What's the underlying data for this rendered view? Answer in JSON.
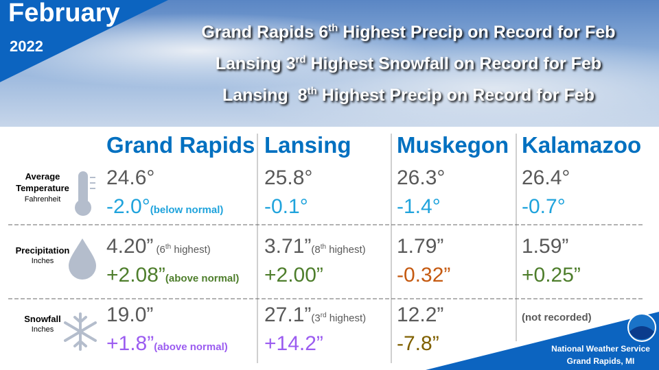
{
  "header": {
    "month": "February",
    "year": "2022",
    "headlines": [
      {
        "before": "Grand Rapids 6",
        "sup": "th",
        "after": " Highest Precip on Record for Feb"
      },
      {
        "before": "Lansing 3",
        "sup": "rd",
        "after": " Highest Snowfall on Record for Feb"
      },
      {
        "before": "Lansing  8",
        "sup": "th",
        "after": " Highest Precip on Record for Feb"
      }
    ]
  },
  "table": {
    "header_color": "#0070c0",
    "value_color": "#595959",
    "columns": [
      "Grand Rapids",
      "Lansing",
      "Muskegon",
      "Kalamazoo"
    ],
    "rows": [
      {
        "label": "Average Temperature",
        "unit": "Fahrenheit",
        "icon": "thermometer",
        "cells": [
          {
            "value": "24.6°",
            "anomaly": "-2.0°",
            "anomaly_note": "(below normal)",
            "anomaly_color": "#1fa3dc"
          },
          {
            "value": "25.8°",
            "anomaly": "-0.1°",
            "anomaly_color": "#1fa3dc"
          },
          {
            "value": "26.3°",
            "anomaly": "-1.4°",
            "anomaly_color": "#1fa3dc"
          },
          {
            "value": "26.4°",
            "anomaly": "-0.7°",
            "anomaly_color": "#1fa3dc"
          }
        ]
      },
      {
        "label": "Precipitation",
        "unit": "Inches",
        "icon": "drop",
        "cells": [
          {
            "value": "4.20”",
            "value_note": {
              "before": " (6",
              "sup": "th",
              "after": " highest)"
            },
            "anomaly": "+2.08”",
            "anomaly_note": "(above normal)",
            "anomaly_color": "#4e7e2c"
          },
          {
            "value": "3.71”",
            "value_note": {
              "before": "(8",
              "sup": "th",
              "after": " highest)"
            },
            "anomaly": "+2.00”",
            "anomaly_color": "#4e7e2c"
          },
          {
            "value": "1.79”",
            "anomaly": "-0.32”",
            "anomaly_color": "#c55a11"
          },
          {
            "value": "1.59”",
            "anomaly": "+0.25”",
            "anomaly_color": "#4e7e2c"
          }
        ]
      },
      {
        "label": "Snowfall",
        "unit": "Inches",
        "icon": "snowflake",
        "cells": [
          {
            "value": "19.0”",
            "anomaly": "+1.8”",
            "anomaly_note": "(above normal)",
            "anomaly_color": "#9b5cf0"
          },
          {
            "value": "27.1”",
            "value_note": {
              "before": "(3",
              "sup": "rd",
              "after": " highest)"
            },
            "anomaly": "+14.2”",
            "anomaly_color": "#9b5cf0"
          },
          {
            "value": "12.2”",
            "anomaly": "-7.8”",
            "anomaly_color": "#7f6000"
          },
          {
            "note": "(not recorded)"
          }
        ]
      }
    ]
  },
  "footer": {
    "agency": "National Weather Service",
    "office": "Grand Rapids, MI"
  }
}
